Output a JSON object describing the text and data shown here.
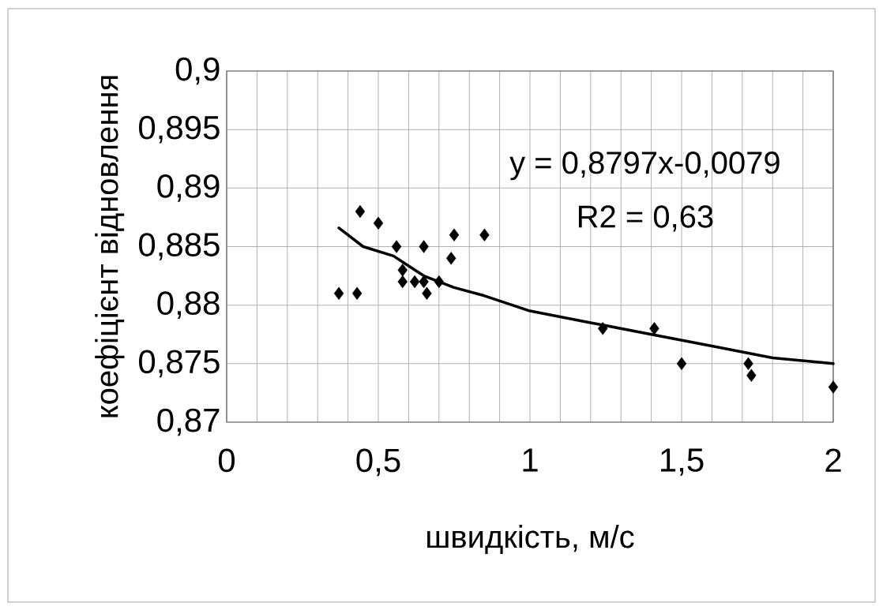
{
  "chart_data": {
    "type": "scatter",
    "xlabel": "швидкість, м/с",
    "ylabel": "коефіцієнт відновлення",
    "annotations": [
      "y = 0,8797x-0,0079",
      "R2 = 0,63"
    ],
    "series": [
      {
        "color": "#000000",
        "marker": "diamond",
        "x": [
          0.37,
          0.43,
          0.44,
          0.5,
          0.56,
          0.58,
          0.58,
          0.62,
          0.65,
          0.65,
          0.66,
          0.7,
          0.74,
          0.75,
          0.85,
          1.24,
          1.41,
          1.5,
          1.72,
          1.73,
          2.0
        ],
        "values": [
          0.881,
          0.881,
          0.888,
          0.887,
          0.885,
          0.883,
          0.882,
          0.882,
          0.885,
          0.882,
          0.881,
          0.882,
          0.884,
          0.886,
          0.886,
          0.878,
          0.878,
          0.875,
          0.875,
          0.874,
          0.873
        ]
      },
      {
        "type": "line",
        "color": "#000000",
        "marker": "none",
        "x": [
          0.37,
          0.45,
          0.55,
          0.65,
          0.75,
          0.85,
          1.0,
          1.2,
          1.4,
          1.6,
          1.8,
          2.0
        ],
        "values": [
          0.8866,
          0.885,
          0.8842,
          0.8825,
          0.8815,
          0.8808,
          0.8795,
          0.8785,
          0.8775,
          0.8765,
          0.8755,
          0.875
        ]
      }
    ],
    "xlim": [
      0,
      2
    ],
    "ylim": [
      0.87,
      0.9
    ],
    "xticks": [
      0,
      {
        "value": 0.1,
        "label": null
      },
      {
        "value": 0.2,
        "label": null
      },
      {
        "value": 0.3,
        "label": null
      },
      {
        "value": 0.4,
        "label": null
      },
      {
        "value": 0.5,
        "label": "0,5"
      },
      {
        "value": 0.6,
        "label": null
      },
      {
        "value": 0.7,
        "label": null
      },
      {
        "value": 0.8,
        "label": null
      },
      {
        "value": 0.9,
        "label": null
      },
      1,
      {
        "value": 1.1,
        "label": null
      },
      {
        "value": 1.2,
        "label": null
      },
      {
        "value": 1.3,
        "label": null
      },
      {
        "value": 1.4,
        "label": null
      },
      {
        "value": 1.5,
        "label": "1,5"
      },
      {
        "value": 1.6,
        "label": null
      },
      {
        "value": 1.7,
        "label": null
      },
      {
        "value": 1.8,
        "label": null
      },
      {
        "value": 1.9,
        "label": null
      },
      2
    ],
    "yticks": [
      {
        "value": 0.87,
        "label": "0,87"
      },
      {
        "value": 0.875,
        "label": "0,875"
      },
      {
        "value": 0.88,
        "label": "0,88"
      },
      {
        "value": 0.885,
        "label": "0,885"
      },
      {
        "value": 0.89,
        "label": "0,89"
      },
      {
        "value": 0.895,
        "label": "0,895"
      },
      {
        "value": 0.9,
        "label": "0,9"
      }
    ],
    "grid": true,
    "legend": false
  }
}
